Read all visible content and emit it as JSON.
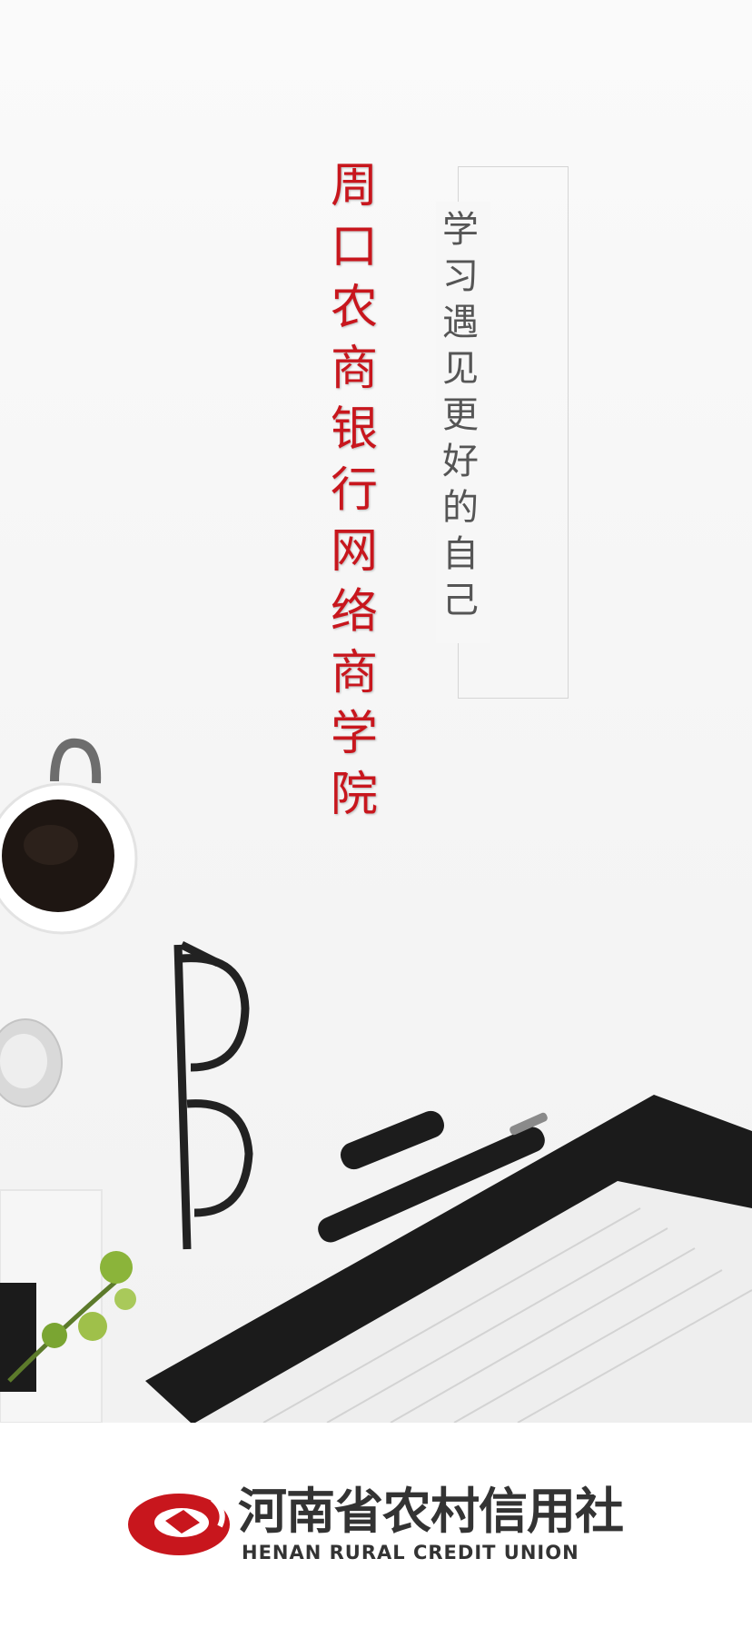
{
  "splash": {
    "title_chars": [
      "周",
      "口",
      "农",
      "商",
      "银",
      "行",
      "网",
      "络",
      "商",
      "学",
      "院"
    ],
    "slogan_chars": [
      "学",
      "习",
      "遇",
      "见",
      "更",
      "好",
      "的",
      "自",
      "己"
    ]
  },
  "footer": {
    "logo_cn": "河南省农村信用社",
    "logo_en": "HENAN RURAL CREDIT UNION"
  },
  "colors": {
    "brand_red": "#c8161d",
    "slogan_gray": "#555555",
    "logo_dark": "#333333"
  }
}
